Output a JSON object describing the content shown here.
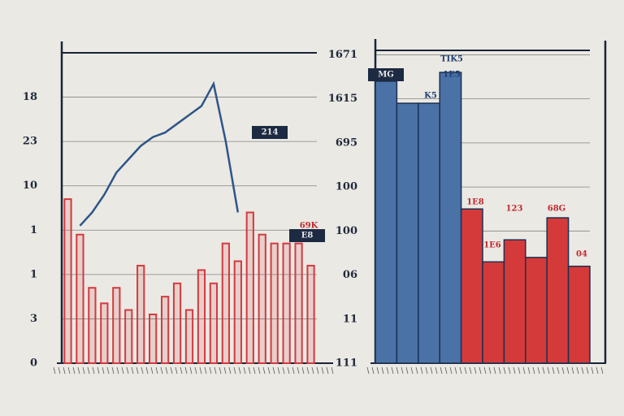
{
  "chart_data": [
    {
      "type": "combo",
      "categories": [
        null,
        null,
        null,
        null,
        null,
        null,
        null,
        null,
        null,
        null,
        null,
        null,
        null,
        null,
        null,
        null,
        null,
        null,
        null,
        null,
        null
      ],
      "series": [
        {
          "type": "bar",
          "color": "#d23a3f",
          "values": [
            3.7,
            2.9,
            1.7,
            1.35,
            1.7,
            1.2,
            2.2,
            1.1,
            1.5,
            1.8,
            1.2,
            2.1,
            1.8,
            2.7,
            2.3,
            3.4,
            2.9,
            2.7,
            2.7,
            2.7,
            2.2
          ]
        },
        {
          "type": "line",
          "color": "#2d5688",
          "values": [
            null,
            3.1,
            3.4,
            3.8,
            4.3,
            4.6,
            4.9,
            5.1,
            5.2,
            5.4,
            5.6,
            5.8,
            6.3,
            5.0,
            3.4,
            null,
            null,
            null,
            null,
            null,
            null
          ]
        }
      ],
      "ylim": [
        0,
        7
      ],
      "yticks": [
        0,
        {
          "value": 1,
          "label": "3"
        },
        {
          "value": 2,
          "label": "1"
        },
        {
          "value": 3,
          "label": "1"
        },
        {
          "value": 4,
          "label": "10"
        },
        {
          "value": 5,
          "label": "23"
        },
        {
          "value": 6,
          "label": "18"
        }
      ],
      "grid": true,
      "annotations": [
        "214",
        "E8",
        "69K"
      ]
    },
    {
      "type": "bar",
      "categories": [
        null,
        null,
        null,
        null,
        null,
        null,
        null,
        null,
        null,
        null
      ],
      "series": [
        {
          "color": "#4a72a6",
          "values": [
            6.4,
            5.9,
            5.9,
            6.6,
            null,
            null,
            null,
            null,
            null,
            null
          ]
        },
        {
          "color": "#d43a3a",
          "values": [
            null,
            null,
            null,
            null,
            3.5,
            2.3,
            2.8,
            2.4,
            3.3,
            2.2
          ]
        }
      ],
      "ylim": [
        0,
        7.1
      ],
      "yticks": [
        {
          "value": 0,
          "label": "111"
        },
        {
          "value": 1,
          "label": "11"
        },
        {
          "value": 2,
          "label": "06"
        },
        {
          "value": 3,
          "label": "100"
        },
        {
          "value": 4,
          "label": "100"
        },
        {
          "value": 5,
          "label": "695"
        },
        {
          "value": 6,
          "label": "1615"
        },
        {
          "value": 7,
          "label": "1671"
        }
      ],
      "grid": true,
      "annotations": [
        "TIK5",
        "MG",
        "1E5",
        "K5",
        "1E8",
        "123",
        "68G",
        "1E6",
        "04"
      ]
    }
  ]
}
